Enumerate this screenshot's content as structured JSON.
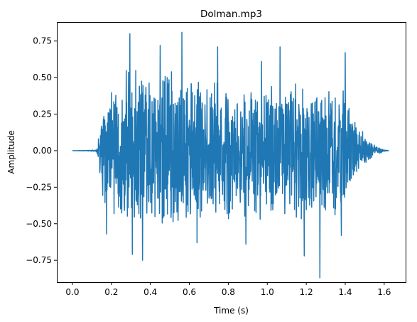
{
  "chart_data": {
    "type": "line",
    "title": "Dolman.mp3",
    "xlabel": "Time (s)",
    "ylabel": "Amplitude",
    "xlim": [
      -0.08,
      1.71
    ],
    "ylim": [
      -0.9,
      0.88
    ],
    "xticks": [
      0.0,
      0.2,
      0.4,
      0.6,
      0.8,
      1.0,
      1.2,
      1.4,
      1.6
    ],
    "xtick_labels": [
      "0.0",
      "0.2",
      "0.4",
      "0.6",
      "0.8",
      "1.0",
      "1.2",
      "1.4",
      "1.6"
    ],
    "yticks": [
      -0.75,
      -0.5,
      -0.25,
      0.0,
      0.25,
      0.5,
      0.75
    ],
    "ytick_labels": [
      "−0.75",
      "−0.50",
      "−0.25",
      "0.00",
      "0.25",
      "0.50",
      "0.75"
    ],
    "grid": false,
    "series": [
      {
        "color": "#1f77b4",
        "duration": 1.625,
        "peaks": [
          {
            "t": 0.295,
            "v": 0.8
          },
          {
            "t": 0.562,
            "v": 0.81
          },
          {
            "t": 1.27,
            "v": -0.87
          },
          {
            "t": 0.308,
            "v": -0.71
          },
          {
            "t": 0.36,
            "v": -0.75
          },
          {
            "t": 1.065,
            "v": 0.71
          },
          {
            "t": 1.4,
            "v": 0.67
          },
          {
            "t": 0.45,
            "v": 0.72
          },
          {
            "t": 0.175,
            "v": -0.57
          },
          {
            "t": 0.64,
            "v": -0.63
          },
          {
            "t": 1.19,
            "v": -0.72
          },
          {
            "t": 0.745,
            "v": 0.71
          },
          {
            "t": 0.97,
            "v": 0.61
          },
          {
            "t": 1.38,
            "v": -0.58
          },
          {
            "t": 0.89,
            "v": -0.64
          }
        ],
        "envelope": [
          [
            0.0,
            0.0
          ],
          [
            0.12,
            0.005
          ],
          [
            0.13,
            0.05
          ],
          [
            0.15,
            0.35
          ],
          [
            0.2,
            0.5
          ],
          [
            0.3,
            0.6
          ],
          [
            0.4,
            0.55
          ],
          [
            0.5,
            0.58
          ],
          [
            0.6,
            0.55
          ],
          [
            0.7,
            0.5
          ],
          [
            0.8,
            0.5
          ],
          [
            0.9,
            0.47
          ],
          [
            1.0,
            0.5
          ],
          [
            1.1,
            0.5
          ],
          [
            1.2,
            0.5
          ],
          [
            1.3,
            0.48
          ],
          [
            1.4,
            0.45
          ],
          [
            1.45,
            0.2
          ],
          [
            1.5,
            0.12
          ],
          [
            1.55,
            0.04
          ],
          [
            1.6,
            0.008
          ],
          [
            1.625,
            0.0
          ]
        ]
      }
    ]
  }
}
